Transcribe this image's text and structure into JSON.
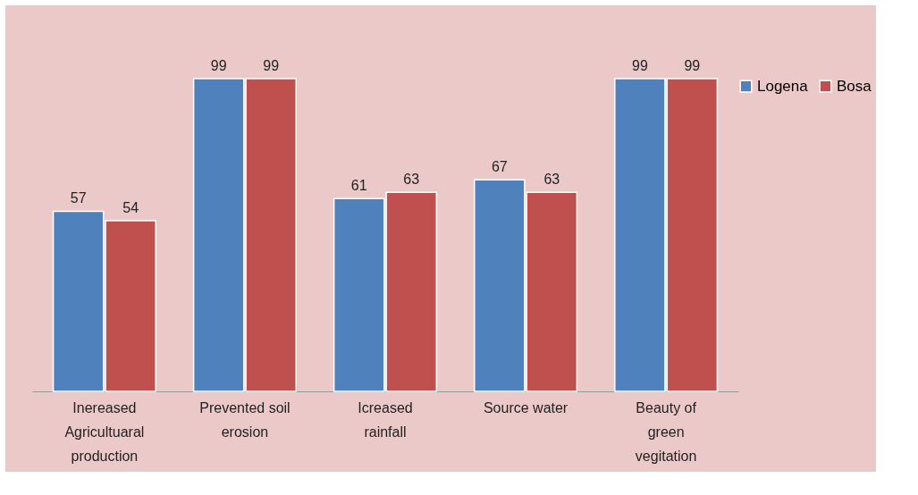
{
  "chart_data": {
    "type": "bar",
    "categories": [
      "Inereased Agricultuaral production",
      "Prevented soil erosion",
      "Icreased rainfall",
      "Source water",
      "Beauty of green vegitation"
    ],
    "series": [
      {
        "name": "Logena",
        "color": "#4f81bd",
        "values": [
          57,
          99,
          61,
          67,
          99
        ]
      },
      {
        "name": "Bosa",
        "color": "#c0504d",
        "values": [
          54,
          99,
          63,
          63,
          99
        ]
      }
    ],
    "data_labels": true,
    "legend": "right",
    "grid": false
  }
}
